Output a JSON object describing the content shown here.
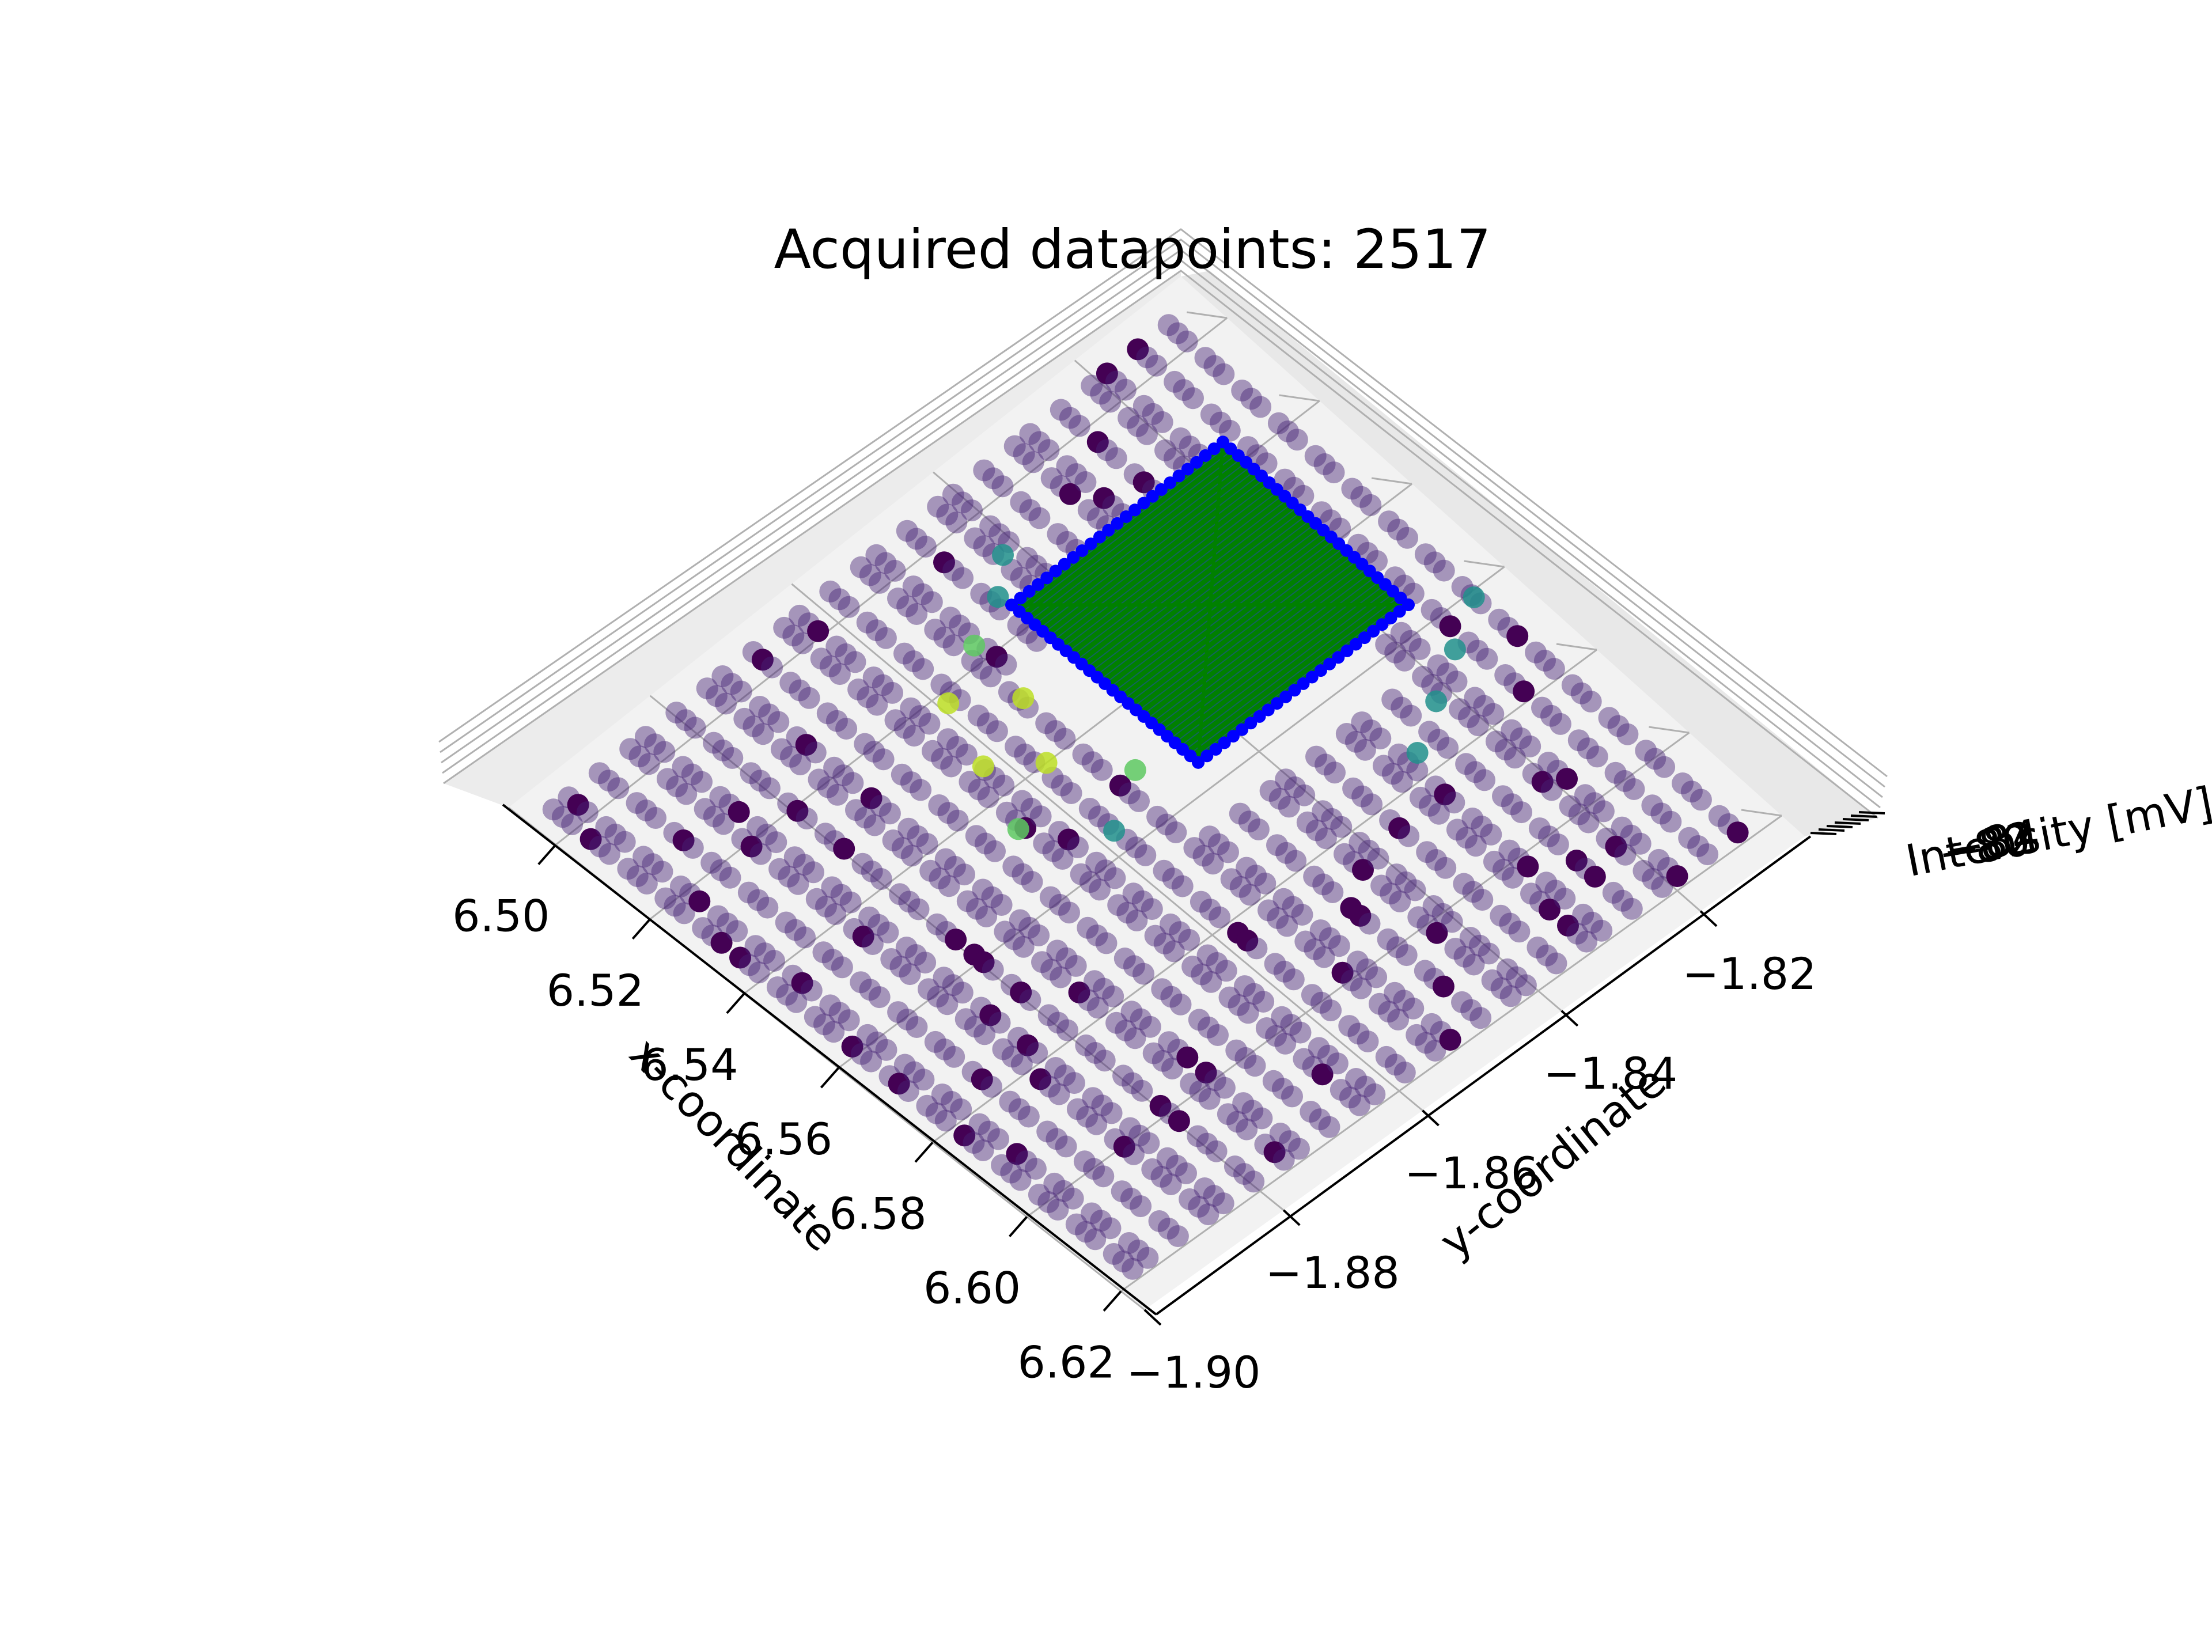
{
  "chart_data": {
    "type": "scatter",
    "subtype": "3d-scatter-with-surface",
    "title": "Acquired datapoints: 2517",
    "xlabel": "x-coordinate",
    "ylabel": "y-coordinate",
    "zlabel": "Intensity [mV]",
    "xlim": [
      6.49,
      6.625
    ],
    "ylim": [
      -1.9,
      -1.805
    ],
    "x_ticks": [
      "6.50",
      "6.52",
      "6.54",
      "6.56",
      "6.58",
      "6.60",
      "6.62"
    ],
    "y_ticks": [
      "−1.90",
      "−1.88",
      "−1.86",
      "−1.84",
      "−1.82"
    ],
    "z_ticks_overlapping": [
      "−80",
      "−82",
      "−84"
    ],
    "colormap": "viridis",
    "grid": true,
    "scatter_style": {
      "alpha": 0.45,
      "marker": "circle"
    },
    "surface": {
      "type": "rectangular-patch",
      "color": "#008000",
      "edge_color": "#0000ff",
      "x_range": [
        6.525,
        6.565
      ],
      "y_range": [
        -1.852,
        -1.822
      ]
    },
    "colors": {
      "low": "#440154",
      "low_mid": "#482475",
      "mid": "#21918c",
      "high": "#5ec962",
      "peak": "#bddf26",
      "pane": "#f2f2f2",
      "grid": "#b0b0b0"
    },
    "scan_points": {
      "x_min": 6.495,
      "x_max": 6.62,
      "nx": 64,
      "y_min": -1.897,
      "y_max": -1.81,
      "ny": 41,
      "row_period": 5,
      "row_gaps": [
        2,
        4
      ],
      "col_period": 4,
      "col_gap": 3
    },
    "high_points": [
      {
        "x": 6.522,
        "y": -1.859,
        "intensity": -80.5
      },
      {
        "x": 6.529,
        "y": -1.853,
        "intensity": -80.8
      },
      {
        "x": 6.534,
        "y": -1.862,
        "intensity": -80.6
      },
      {
        "x": 6.54,
        "y": -1.857,
        "intensity": -81.2
      },
      {
        "x": 6.517,
        "y": -1.852,
        "intensity": -82.4
      },
      {
        "x": 6.546,
        "y": -1.865,
        "intensity": -82.7
      },
      {
        "x": 6.55,
        "y": -1.851,
        "intensity": -82.2
      },
      {
        "x": 6.513,
        "y": -1.846,
        "intensity": -83.3
      },
      {
        "x": 6.556,
        "y": -1.858,
        "intensity": -83.6
      },
      {
        "x": 6.566,
        "y": -1.816,
        "intensity": -82.8
      },
      {
        "x": 6.571,
        "y": -1.822,
        "intensity": -83.0
      },
      {
        "x": 6.561,
        "y": -1.81,
        "intensity": -83.1
      },
      {
        "x": 6.576,
        "y": -1.828,
        "intensity": -83.5
      },
      {
        "x": 6.508,
        "y": -1.842,
        "intensity": -83.8
      }
    ]
  }
}
